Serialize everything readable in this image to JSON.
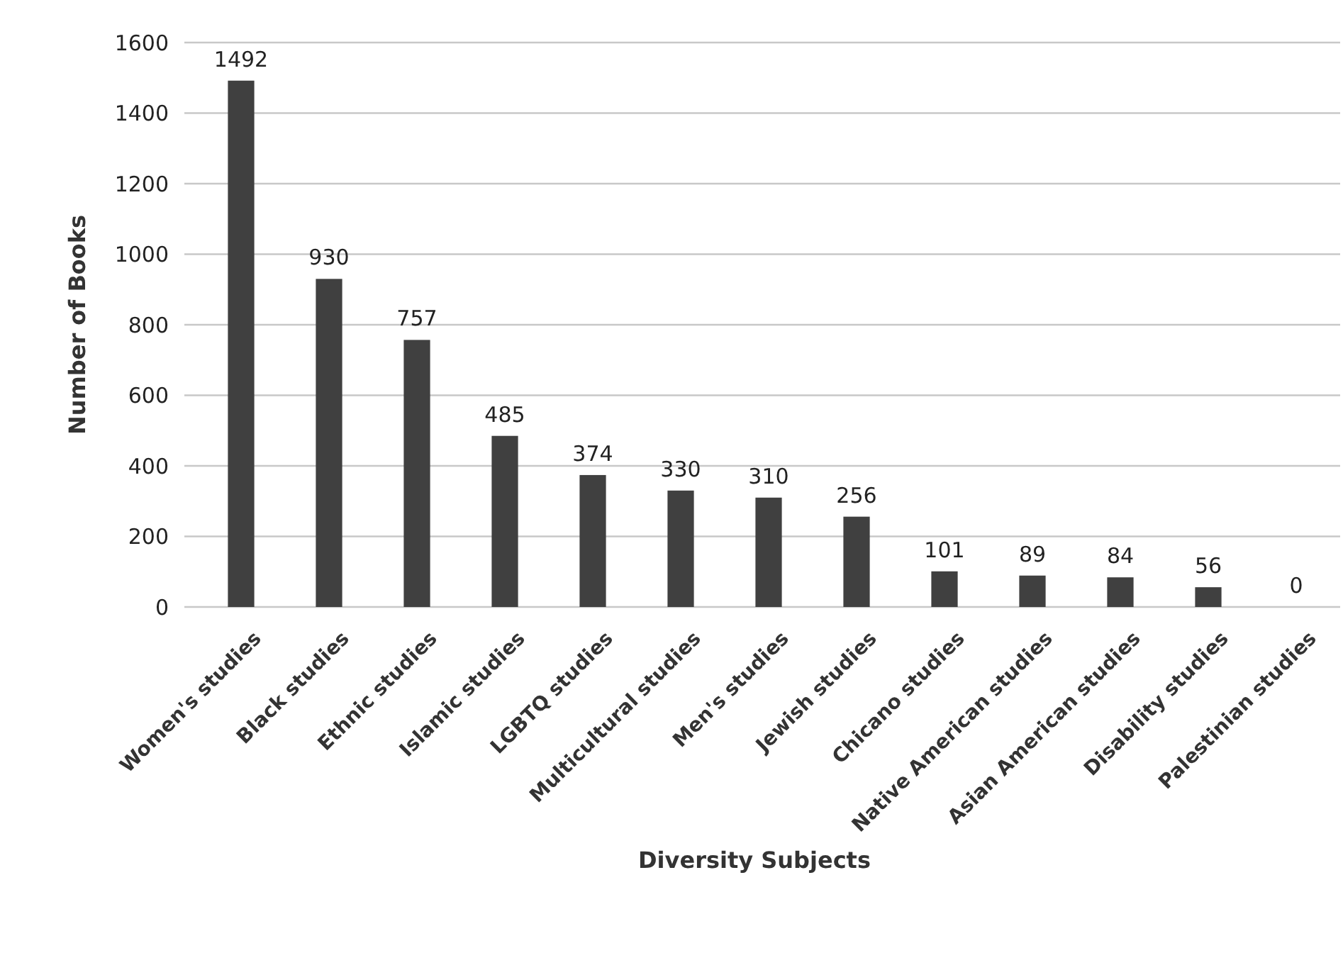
{
  "chart_data": {
    "type": "bar",
    "xlabel": "Diversity Subjects",
    "ylabel": "Number of Books",
    "categories": [
      "Women's studies",
      "Black studies",
      "Ethnic studies",
      "Islamic studies",
      "LGBTQ studies",
      "Multicultural studies",
      "Men's studies",
      "Jewish studies",
      "Chicano studies",
      "Native American studies",
      "Asian American studies",
      "Disability studies",
      "Palestinian studies"
    ],
    "values": [
      1492,
      930,
      757,
      485,
      374,
      330,
      310,
      256,
      101,
      89,
      84,
      56,
      0
    ],
    "color": "#404040",
    "ylim": [
      0,
      1600
    ],
    "yticks": [
      0,
      200,
      400,
      600,
      800,
      1000,
      1200,
      1400,
      1600
    ],
    "grid": "y",
    "data_labels": true
  }
}
